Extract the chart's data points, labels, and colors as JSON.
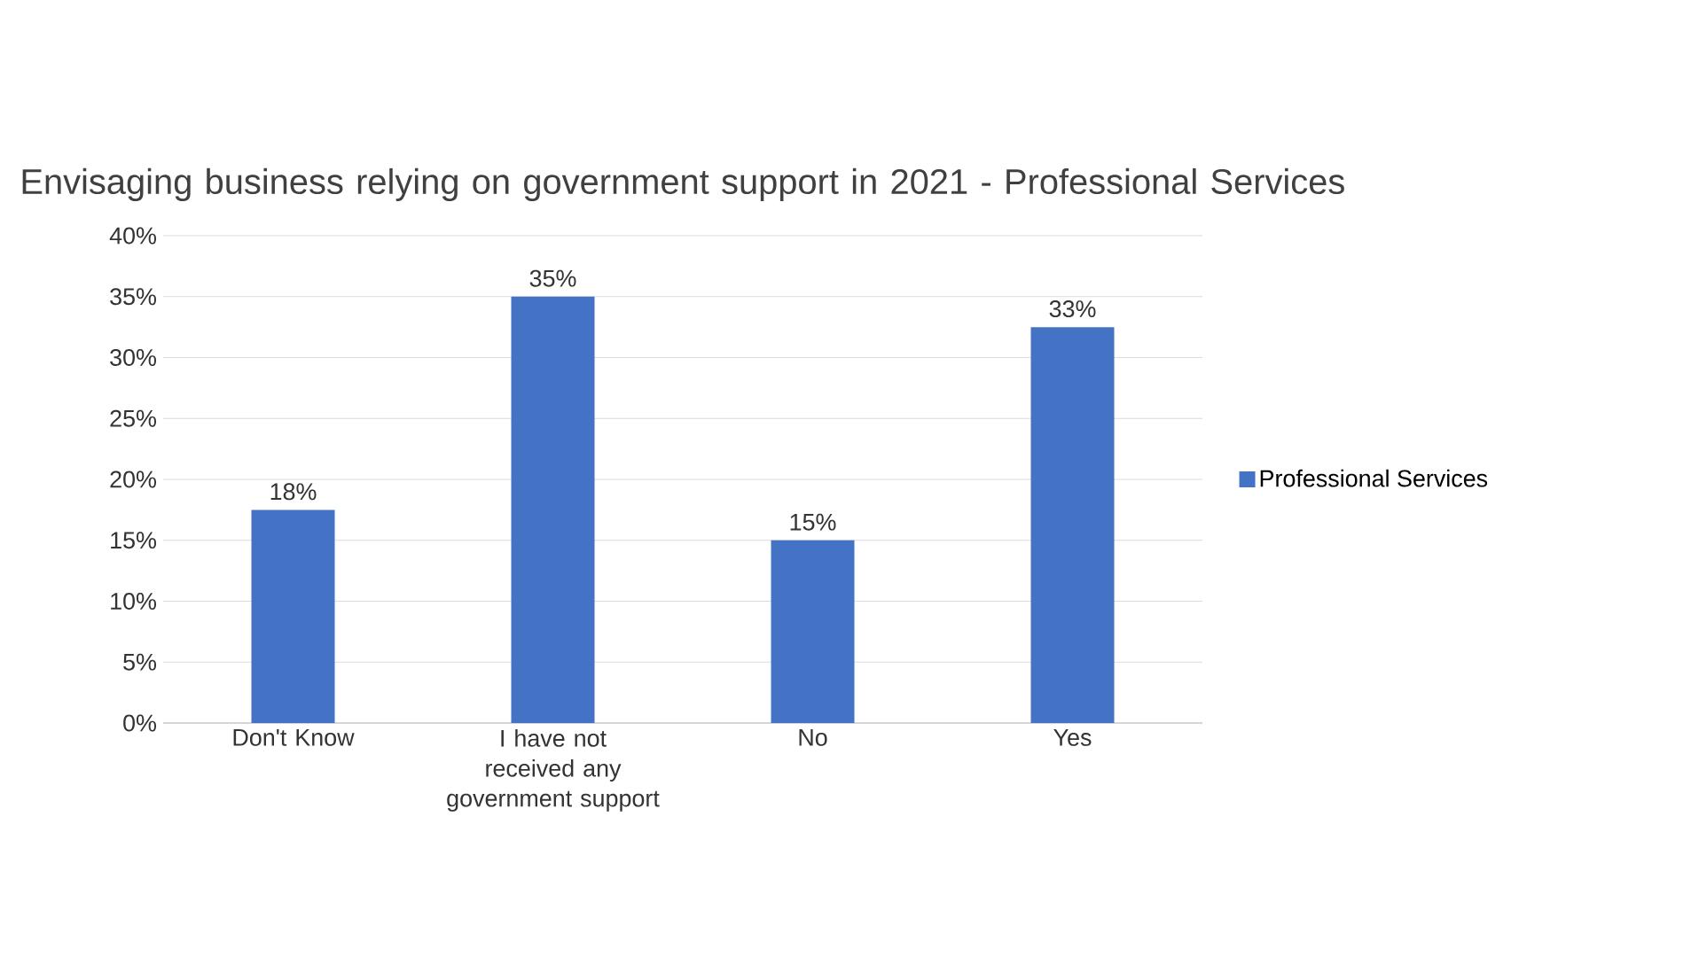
{
  "chart_data": {
    "type": "bar",
    "title": "Envisaging business relying on government support in 2021 - Professional Services",
    "categories": [
      "Don't Know",
      "I have not received any government support",
      "No",
      "Yes"
    ],
    "series": [
      {
        "name": "Professional Services",
        "color": "#4472c4",
        "values": [
          17.5,
          35,
          15,
          32.5
        ],
        "value_labels": [
          "18%",
          "35%",
          "15%",
          "33%"
        ]
      }
    ],
    "ylim": [
      0,
      40
    ],
    "yticks": [
      {
        "value": 0,
        "label": "0%"
      },
      {
        "value": 5,
        "label": "5%"
      },
      {
        "value": 10,
        "label": "10%"
      },
      {
        "value": 15,
        "label": "15%"
      },
      {
        "value": 20,
        "label": "20%"
      },
      {
        "value": 25,
        "label": "25%"
      },
      {
        "value": 30,
        "label": "30%"
      },
      {
        "value": 35,
        "label": "35%"
      },
      {
        "value": 40,
        "label": "40%"
      }
    ],
    "grid": "y",
    "legend": "right"
  }
}
